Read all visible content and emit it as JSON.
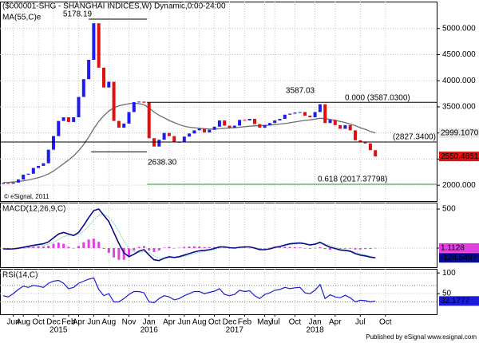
{
  "chart_data": [
    {
      "type": "candlestick",
      "title": "($000001-SHG - SHANGHAI INDICES,W) Dynamic,0:00-24:00",
      "categories": [
        null,
        null,
        "Jun",
        null,
        "Aug",
        null,
        null,
        "Oct",
        null,
        null,
        "Dec",
        null,
        null,
        "Feb",
        null,
        "Apr",
        null,
        null,
        "Jun",
        null,
        null,
        "Aug",
        null,
        null,
        null,
        "Nov",
        null,
        null,
        null,
        "Jan",
        null,
        null,
        null,
        "Apr",
        null,
        null,
        "Jun",
        null,
        null,
        "Aug",
        null,
        null,
        "Oct",
        null,
        null,
        "Dec",
        null,
        null,
        "Feb",
        null,
        null,
        null,
        "May",
        null,
        "Jul",
        null,
        null,
        null,
        "Oct",
        null,
        null,
        null,
        "Jan",
        null,
        null,
        null,
        "Apr",
        null,
        null,
        null,
        null,
        "Jul",
        null,
        null,
        null,
        null,
        "Oct"
      ],
      "category_years": [
        null,
        null,
        null,
        null,
        null,
        null,
        null,
        null,
        null,
        null,
        null,
        "2015",
        null,
        null,
        null,
        null,
        null,
        null,
        null,
        null,
        null,
        null,
        null,
        null,
        null,
        null,
        null,
        null,
        null,
        "2016",
        null,
        null,
        null,
        null,
        null,
        null,
        null,
        null,
        null,
        null,
        null,
        null,
        null,
        null,
        null,
        null,
        "2017",
        null,
        null,
        null,
        null,
        null,
        null,
        null,
        null,
        null,
        null,
        null,
        null,
        null,
        null,
        null,
        "2018",
        null,
        null,
        null,
        null,
        null,
        null,
        null,
        null,
        null,
        null,
        null,
        null,
        null,
        null
      ],
      "up_color": "#1c1cf0",
      "down_color": "#e01010",
      "series": [
        {
          "color": "#1c1cf0",
          "values": [
            2040,
            2030,
            2050,
            2110,
            2200,
            2220,
            2330,
            2370,
            2420,
            2680,
            2940,
            3230,
            3300,
            3210,
            3300,
            3690,
            4030,
            4400,
            5100,
            4250,
            3870,
            3980,
            3230,
            3100,
            3180,
            3400,
            3590,
            3600,
            3580,
            2900,
            2740,
            2870,
            3000,
            2940,
            2820,
            2830,
            2930,
            2990,
            3050,
            3080,
            3010,
            3060,
            3120,
            3240,
            3140,
            3100,
            3140,
            3250,
            3240,
            3270,
            3170,
            3100,
            3150,
            3190,
            3240,
            3270,
            3350,
            3370,
            3390,
            3400,
            3330,
            3300,
            3400,
            3550,
            3190,
            3250,
            3150,
            3080,
            3150,
            3050,
            2860,
            2830,
            2800,
            2670,
            2550.4651,
            null,
            null
          ]
        },
        {
          "name": "MA(55,C)e",
          "color": "#6e6e6e",
          "last_label": "2999.1070",
          "values": [
            2050,
            2055,
            2060,
            2070,
            2085,
            2100,
            2120,
            2145,
            2175,
            2215,
            2270,
            2340,
            2410,
            2480,
            2560,
            2660,
            2780,
            2920,
            3080,
            3220,
            3330,
            3420,
            3480,
            3520,
            3540,
            3560,
            3570,
            3560,
            3540,
            3480,
            3400,
            3340,
            3290,
            3240,
            3200,
            3160,
            3130,
            3110,
            3100,
            3090,
            3080,
            3075,
            3075,
            3080,
            3090,
            3095,
            3100,
            3110,
            3120,
            3130,
            3135,
            3140,
            3145,
            3150,
            3160,
            3170,
            3180,
            3195,
            3210,
            3225,
            3240,
            3250,
            3265,
            3280,
            3275,
            3260,
            3240,
            3220,
            3200,
            3170,
            3140,
            3100,
            3070,
            3030,
            2999.107,
            null,
            null
          ]
        }
      ],
      "ylim": [
        1697,
        5515
      ],
      "yticks": [
        {
          "value": 2000,
          "label": "2000.000"
        },
        {
          "value": 2500,
          "label": "2500.000"
        },
        {
          "value": 3000,
          "label": "3000.000"
        },
        {
          "value": 3500,
          "label": "3500.000"
        },
        {
          "value": 4000,
          "label": "4000.000"
        },
        {
          "value": 4500,
          "label": "4500.000"
        },
        {
          "value": 5000,
          "label": "5000.000"
        }
      ],
      "grid": true,
      "annotations": [
        {
          "value": 5178.19
        },
        {
          "value": 2638.3,
          "label": "2638.30"
        },
        {
          "value": 3587.03,
          "label": "0.000 (3587.0300)"
        },
        {
          "value": 2827.34,
          "label": "(2827.3400)"
        },
        {
          "value": 2017.37798,
          "label": "0.618 (2017.37798)",
          "color": "#2e9e2e"
        }
      ],
      "copyright": "© eSignal, 2011"
    },
    {
      "type": "macd",
      "title": "MACD(12,26,9,C)",
      "series": [
        {
          "color": "#0a0a8c",
          "values": [
            -10,
            -12,
            -10,
            -2,
            10,
            22,
            35,
            45,
            55,
            80,
            130,
            180,
            200,
            180,
            160,
            200,
            290,
            390,
            480,
            500,
            420,
            340,
            200,
            60,
            -60,
            -110,
            -80,
            -40,
            -20,
            -90,
            -150,
            -160,
            -130,
            -110,
            -120,
            -110,
            -90,
            -70,
            -50,
            -35,
            -30,
            -20,
            -5,
            15,
            15,
            5,
            0,
            10,
            15,
            15,
            0,
            -20,
            -20,
            -10,
            10,
            20,
            40,
            55,
            60,
            65,
            55,
            40,
            50,
            75,
            40,
            10,
            -5,
            -25,
            -30,
            -40,
            -70,
            -90,
            -100,
            -115,
            -124.5497,
            null,
            null
          ]
        },
        {
          "color": "#7fd6b8",
          "values": [
            -8,
            -9,
            -10,
            -8,
            -3,
            5,
            15,
            25,
            35,
            50,
            75,
            110,
            145,
            165,
            165,
            175,
            215,
            280,
            360,
            420,
            430,
            400,
            320,
            210,
            90,
            0,
            -50,
            -55,
            -45,
            -60,
            -100,
            -130,
            -135,
            -125,
            -120,
            -115,
            -105,
            -90,
            -72,
            -55,
            -42,
            -32,
            -18,
            0,
            8,
            8,
            4,
            6,
            10,
            13,
            7,
            -5,
            -14,
            -13,
            -2,
            10,
            25,
            40,
            50,
            58,
            57,
            48,
            48,
            62,
            52,
            30,
            10,
            -10,
            -22,
            -32,
            -52,
            -72,
            -88,
            -104,
            -125.7,
            null,
            null
          ]
        },
        {
          "color": "#e040e0",
          "values": [
            -2,
            -3,
            0,
            6,
            13,
            17,
            20,
            20,
            20,
            30,
            55,
            70,
            55,
            15,
            -5,
            25,
            75,
            110,
            120,
            80,
            -10,
            -60,
            -120,
            -150,
            -150,
            -110,
            -30,
            15,
            25,
            -30,
            -50,
            -30,
            5,
            15,
            0,
            5,
            15,
            20,
            22,
            20,
            12,
            12,
            13,
            15,
            7,
            -3,
            -4,
            4,
            5,
            2,
            -7,
            -15,
            -6,
            3,
            12,
            10,
            15,
            15,
            10,
            7,
            -2,
            -8,
            2,
            13,
            -12,
            -20,
            -15,
            -15,
            -8,
            -8,
            -18,
            -18,
            -12,
            -11,
            1.1128,
            null,
            null
          ]
        }
      ],
      "ylim": [
        -245,
        582
      ],
      "yticks": [
        0,
        500
      ]
    },
    {
      "type": "rsi",
      "title": "RSI(14,C)",
      "series": [
        {
          "color": "#1c1cd8",
          "values": [
            45,
            42,
            50,
            60,
            68,
            65,
            70,
            68,
            65,
            75,
            80,
            82,
            75,
            62,
            65,
            75,
            80,
            85,
            88,
            60,
            45,
            50,
            30,
            30,
            38,
            48,
            55,
            55,
            52,
            30,
            28,
            38,
            45,
            42,
            35,
            38,
            45,
            50,
            55,
            55,
            50,
            53,
            56,
            62,
            48,
            45,
            48,
            58,
            55,
            57,
            45,
            38,
            48,
            52,
            58,
            60,
            65,
            62,
            64,
            65,
            52,
            50,
            58,
            72,
            38,
            47,
            42,
            40,
            46,
            40,
            30,
            34,
            33,
            30,
            32.1777,
            null,
            null
          ]
        }
      ],
      "ylim": [
        0,
        110
      ],
      "yticks": [
        50,
        100
      ],
      "levels": [
        70,
        30
      ]
    }
  ],
  "footer": "Published by eSignal www.esignal.com"
}
